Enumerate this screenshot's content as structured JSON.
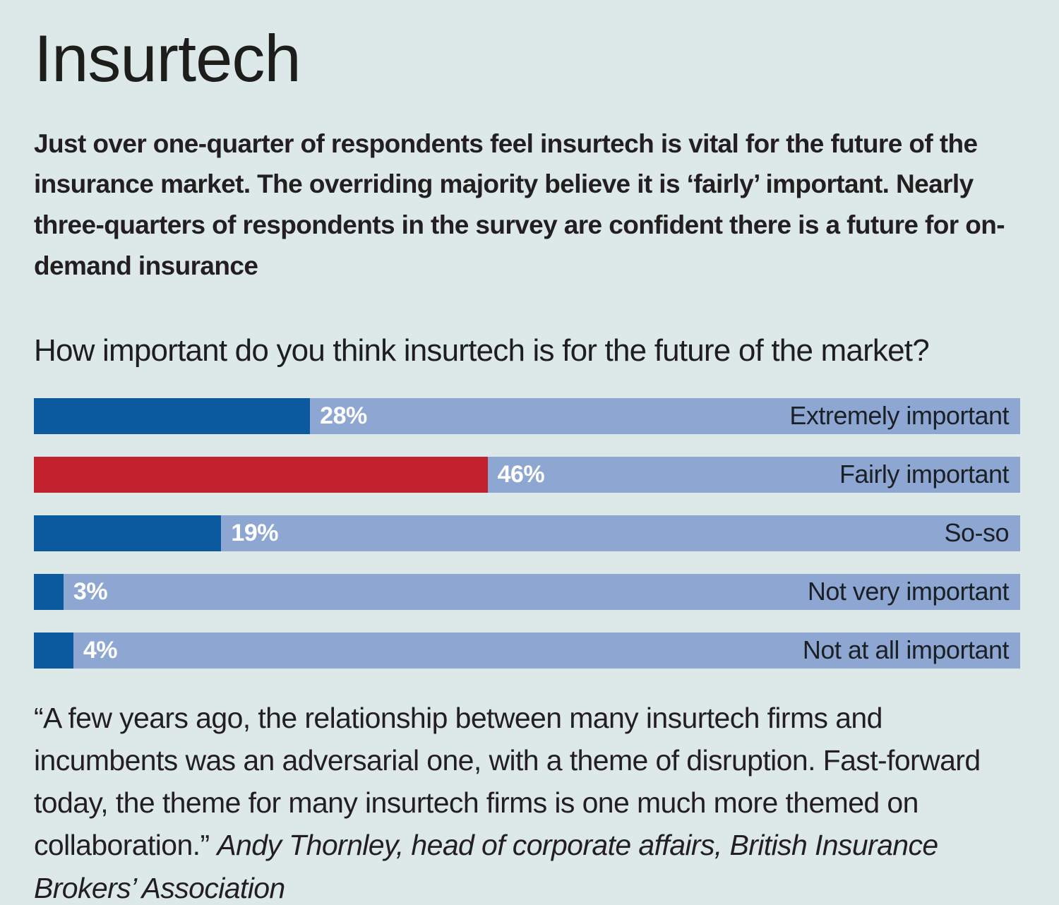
{
  "page": {
    "title": "Insurtech",
    "intro": "Just over one-quarter of respondents feel insurtech is vital for the future of the insurance market. The overriding majority believe it is ‘fairly’ important. Nearly three-quarters of respondents in the survey are confident there is a future for on-demand insurance",
    "question": "How important do you think insurtech is for the future of the market?",
    "quote_text": "“A few years ago, the relationship between many insurtech firms and incumbents was an adversarial one, with a theme of disruption. Fast-forward today, the theme for many insurtech firms is one much more themed on collaboration.” ",
    "quote_attribution": "Andy Thornley, head of corporate affairs, British Insurance Brokers’ Association"
  },
  "colors": {
    "background": "#dde9e8",
    "bar_track": "#8ea7d2",
    "bar_blue": "#0b599e",
    "bar_red": "#c2222e",
    "value_label_text": "#ffffff",
    "category_label_text": "#1b2026",
    "body_text": "#231f20"
  },
  "chart_data": {
    "type": "bar",
    "orientation": "horizontal",
    "title": "How important do you think insurtech is for the future of the market?",
    "categories": [
      "Extremely important",
      "Fairly important",
      "So-so",
      "Not very important",
      "Not at all important"
    ],
    "values": [
      28,
      46,
      19,
      3,
      4
    ],
    "value_labels": [
      "28%",
      "46%",
      "19%",
      "3%",
      "4%"
    ],
    "bar_colors": [
      "#0b599e",
      "#c2222e",
      "#0b599e",
      "#0b599e",
      "#0b599e"
    ],
    "xlim": [
      0,
      100
    ],
    "grid": false,
    "legend": false,
    "value_label_position": "right-of-fill",
    "category_label_position": "right-aligned-inside-track"
  }
}
